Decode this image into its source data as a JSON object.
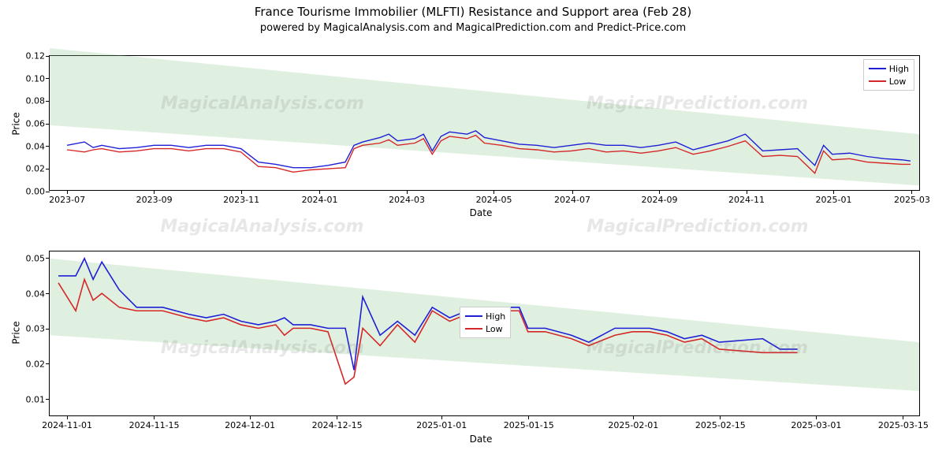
{
  "title": "France Tourisme Immobilier (MLFTI) Resistance and Support area (Feb 28)",
  "subtitle": "powered by MagicalAnalysis.com and MagicalPrediction.com and Predict-Price.com",
  "watermarks": [
    "MagicalAnalysis.com",
    "MagicalPrediction.com"
  ],
  "legend": {
    "high": "High",
    "low": "Low"
  },
  "colors": {
    "high": "#1f1fd6",
    "low": "#d62728",
    "support_fill": "rgba(144,200,144,0.28)",
    "axis": "#000000",
    "background": "#ffffff"
  },
  "chart_top": {
    "type": "line",
    "ylabel": "Price",
    "xlabel": "Date",
    "ylim": [
      0.0,
      0.12
    ],
    "yticks": [
      0.0,
      0.02,
      0.04,
      0.06,
      0.08,
      0.1,
      0.12
    ],
    "ytick_labels": [
      "0.00",
      "0.02",
      "0.04",
      "0.06",
      "0.08",
      "0.10",
      "0.12"
    ],
    "x_range": [
      0,
      100
    ],
    "xticks": [
      3,
      13,
      23,
      33,
      43,
      53,
      63,
      73,
      83,
      93
    ],
    "xtick_labels": [
      "2023-07",
      "2023-09",
      "2023-11",
      "2024-01",
      "2024-03",
      "2024-05",
      "2024-07",
      "2024-09",
      "2024-11",
      "2025-01",
      "2025-03"
    ],
    "xtick_positions": [
      2,
      12,
      22,
      31,
      41,
      51,
      60,
      70,
      80,
      90,
      99
    ],
    "support_band": {
      "top_left_y": 0.127,
      "top_right_y": 0.05,
      "bot_left_y": 0.058,
      "bot_right_y": 0.004
    },
    "high": [
      [
        2,
        0.04
      ],
      [
        4,
        0.043
      ],
      [
        5,
        0.038
      ],
      [
        6,
        0.04
      ],
      [
        8,
        0.037
      ],
      [
        10,
        0.038
      ],
      [
        12,
        0.04
      ],
      [
        14,
        0.04
      ],
      [
        16,
        0.038
      ],
      [
        18,
        0.04
      ],
      [
        20,
        0.04
      ],
      [
        22,
        0.037
      ],
      [
        24,
        0.025
      ],
      [
        26,
        0.023
      ],
      [
        28,
        0.02
      ],
      [
        30,
        0.02
      ],
      [
        32,
        0.022
      ],
      [
        34,
        0.025
      ],
      [
        35,
        0.04
      ],
      [
        36,
        0.043
      ],
      [
        38,
        0.047
      ],
      [
        39,
        0.05
      ],
      [
        40,
        0.044
      ],
      [
        42,
        0.046
      ],
      [
        43,
        0.05
      ],
      [
        44,
        0.035
      ],
      [
        45,
        0.048
      ],
      [
        46,
        0.052
      ],
      [
        48,
        0.05
      ],
      [
        49,
        0.053
      ],
      [
        50,
        0.047
      ],
      [
        52,
        0.044
      ],
      [
        54,
        0.041
      ],
      [
        56,
        0.04
      ],
      [
        58,
        0.038
      ],
      [
        60,
        0.04
      ],
      [
        62,
        0.042
      ],
      [
        64,
        0.04
      ],
      [
        66,
        0.04
      ],
      [
        68,
        0.038
      ],
      [
        70,
        0.04
      ],
      [
        72,
        0.043
      ],
      [
        74,
        0.036
      ],
      [
        76,
        0.04
      ],
      [
        78,
        0.044
      ],
      [
        80,
        0.05
      ],
      [
        82,
        0.035
      ],
      [
        84,
        0.036
      ],
      [
        86,
        0.037
      ],
      [
        88,
        0.022
      ],
      [
        89,
        0.04
      ],
      [
        90,
        0.032
      ],
      [
        92,
        0.033
      ],
      [
        94,
        0.03
      ],
      [
        96,
        0.028
      ],
      [
        98,
        0.027
      ],
      [
        99,
        0.026
      ]
    ],
    "low": [
      [
        2,
        0.036
      ],
      [
        4,
        0.034
      ],
      [
        5,
        0.036
      ],
      [
        6,
        0.037
      ],
      [
        8,
        0.034
      ],
      [
        10,
        0.035
      ],
      [
        12,
        0.037
      ],
      [
        14,
        0.037
      ],
      [
        16,
        0.035
      ],
      [
        18,
        0.037
      ],
      [
        20,
        0.037
      ],
      [
        22,
        0.034
      ],
      [
        24,
        0.021
      ],
      [
        26,
        0.02
      ],
      [
        28,
        0.016
      ],
      [
        30,
        0.018
      ],
      [
        32,
        0.019
      ],
      [
        34,
        0.02
      ],
      [
        35,
        0.037
      ],
      [
        36,
        0.04
      ],
      [
        38,
        0.042
      ],
      [
        39,
        0.045
      ],
      [
        40,
        0.04
      ],
      [
        42,
        0.042
      ],
      [
        43,
        0.046
      ],
      [
        44,
        0.032
      ],
      [
        45,
        0.044
      ],
      [
        46,
        0.048
      ],
      [
        48,
        0.046
      ],
      [
        49,
        0.049
      ],
      [
        50,
        0.042
      ],
      [
        52,
        0.04
      ],
      [
        54,
        0.037
      ],
      [
        56,
        0.036
      ],
      [
        58,
        0.034
      ],
      [
        60,
        0.035
      ],
      [
        62,
        0.037
      ],
      [
        64,
        0.034
      ],
      [
        66,
        0.035
      ],
      [
        68,
        0.033
      ],
      [
        70,
        0.035
      ],
      [
        72,
        0.038
      ],
      [
        74,
        0.032
      ],
      [
        76,
        0.035
      ],
      [
        78,
        0.039
      ],
      [
        80,
        0.044
      ],
      [
        82,
        0.03
      ],
      [
        84,
        0.031
      ],
      [
        86,
        0.03
      ],
      [
        88,
        0.015
      ],
      [
        89,
        0.035
      ],
      [
        90,
        0.027
      ],
      [
        92,
        0.028
      ],
      [
        94,
        0.025
      ],
      [
        96,
        0.024
      ],
      [
        98,
        0.023
      ],
      [
        99,
        0.023
      ]
    ]
  },
  "chart_bottom": {
    "type": "line",
    "ylabel": "Price",
    "xlabel": "Date",
    "ylim": [
      0.005,
      0.052
    ],
    "yticks": [
      0.01,
      0.02,
      0.03,
      0.04,
      0.05
    ],
    "ytick_labels": [
      "0.01",
      "0.02",
      "0.03",
      "0.04",
      "0.05"
    ],
    "x_range": [
      0,
      100
    ],
    "xtick_labels": [
      "2024-11-01",
      "2024-11-15",
      "2024-12-01",
      "2024-12-15",
      "2025-01-01",
      "2025-01-15",
      "2025-02-01",
      "2025-02-15",
      "2025-03-01",
      "2025-03-15"
    ],
    "xtick_positions": [
      2,
      12,
      23,
      33,
      45,
      55,
      67,
      77,
      88,
      98
    ],
    "support_band": {
      "top_left_y": 0.05,
      "top_right_y": 0.026,
      "bot_left_y": 0.028,
      "bot_right_y": 0.012
    },
    "high": [
      [
        1,
        0.045
      ],
      [
        3,
        0.045
      ],
      [
        4,
        0.05
      ],
      [
        5,
        0.044
      ],
      [
        6,
        0.049
      ],
      [
        8,
        0.041
      ],
      [
        10,
        0.036
      ],
      [
        13,
        0.036
      ],
      [
        16,
        0.034
      ],
      [
        18,
        0.033
      ],
      [
        20,
        0.034
      ],
      [
        22,
        0.032
      ],
      [
        24,
        0.031
      ],
      [
        26,
        0.032
      ],
      [
        27,
        0.033
      ],
      [
        28,
        0.031
      ],
      [
        30,
        0.031
      ],
      [
        32,
        0.03
      ],
      [
        34,
        0.03
      ],
      [
        35,
        0.018
      ],
      [
        36,
        0.039
      ],
      [
        38,
        0.028
      ],
      [
        40,
        0.032
      ],
      [
        42,
        0.028
      ],
      [
        44,
        0.036
      ],
      [
        46,
        0.033
      ],
      [
        48,
        0.035
      ],
      [
        50,
        0.036
      ],
      [
        52,
        0.036
      ],
      [
        54,
        0.036
      ],
      [
        55,
        0.03
      ],
      [
        57,
        0.03
      ],
      [
        60,
        0.028
      ],
      [
        62,
        0.026
      ],
      [
        65,
        0.03
      ],
      [
        67,
        0.03
      ],
      [
        69,
        0.03
      ],
      [
        71,
        0.029
      ],
      [
        73,
        0.027
      ],
      [
        75,
        0.028
      ],
      [
        77,
        0.026
      ],
      [
        82,
        0.027
      ],
      [
        84,
        0.024
      ],
      [
        86,
        0.024
      ]
    ],
    "low": [
      [
        1,
        0.043
      ],
      [
        3,
        0.035
      ],
      [
        4,
        0.044
      ],
      [
        5,
        0.038
      ],
      [
        6,
        0.04
      ],
      [
        8,
        0.036
      ],
      [
        10,
        0.035
      ],
      [
        13,
        0.035
      ],
      [
        16,
        0.033
      ],
      [
        18,
        0.032
      ],
      [
        20,
        0.033
      ],
      [
        22,
        0.031
      ],
      [
        24,
        0.03
      ],
      [
        26,
        0.031
      ],
      [
        27,
        0.028
      ],
      [
        28,
        0.03
      ],
      [
        30,
        0.03
      ],
      [
        32,
        0.029
      ],
      [
        34,
        0.014
      ],
      [
        35,
        0.016
      ],
      [
        36,
        0.03
      ],
      [
        38,
        0.025
      ],
      [
        40,
        0.031
      ],
      [
        42,
        0.026
      ],
      [
        44,
        0.035
      ],
      [
        46,
        0.032
      ],
      [
        48,
        0.034
      ],
      [
        50,
        0.035
      ],
      [
        52,
        0.035
      ],
      [
        54,
        0.035
      ],
      [
        55,
        0.029
      ],
      [
        57,
        0.029
      ],
      [
        60,
        0.027
      ],
      [
        62,
        0.025
      ],
      [
        65,
        0.028
      ],
      [
        67,
        0.029
      ],
      [
        69,
        0.029
      ],
      [
        71,
        0.028
      ],
      [
        73,
        0.026
      ],
      [
        75,
        0.027
      ],
      [
        77,
        0.024
      ],
      [
        82,
        0.023
      ],
      [
        84,
        0.023
      ],
      [
        86,
        0.023
      ]
    ]
  }
}
